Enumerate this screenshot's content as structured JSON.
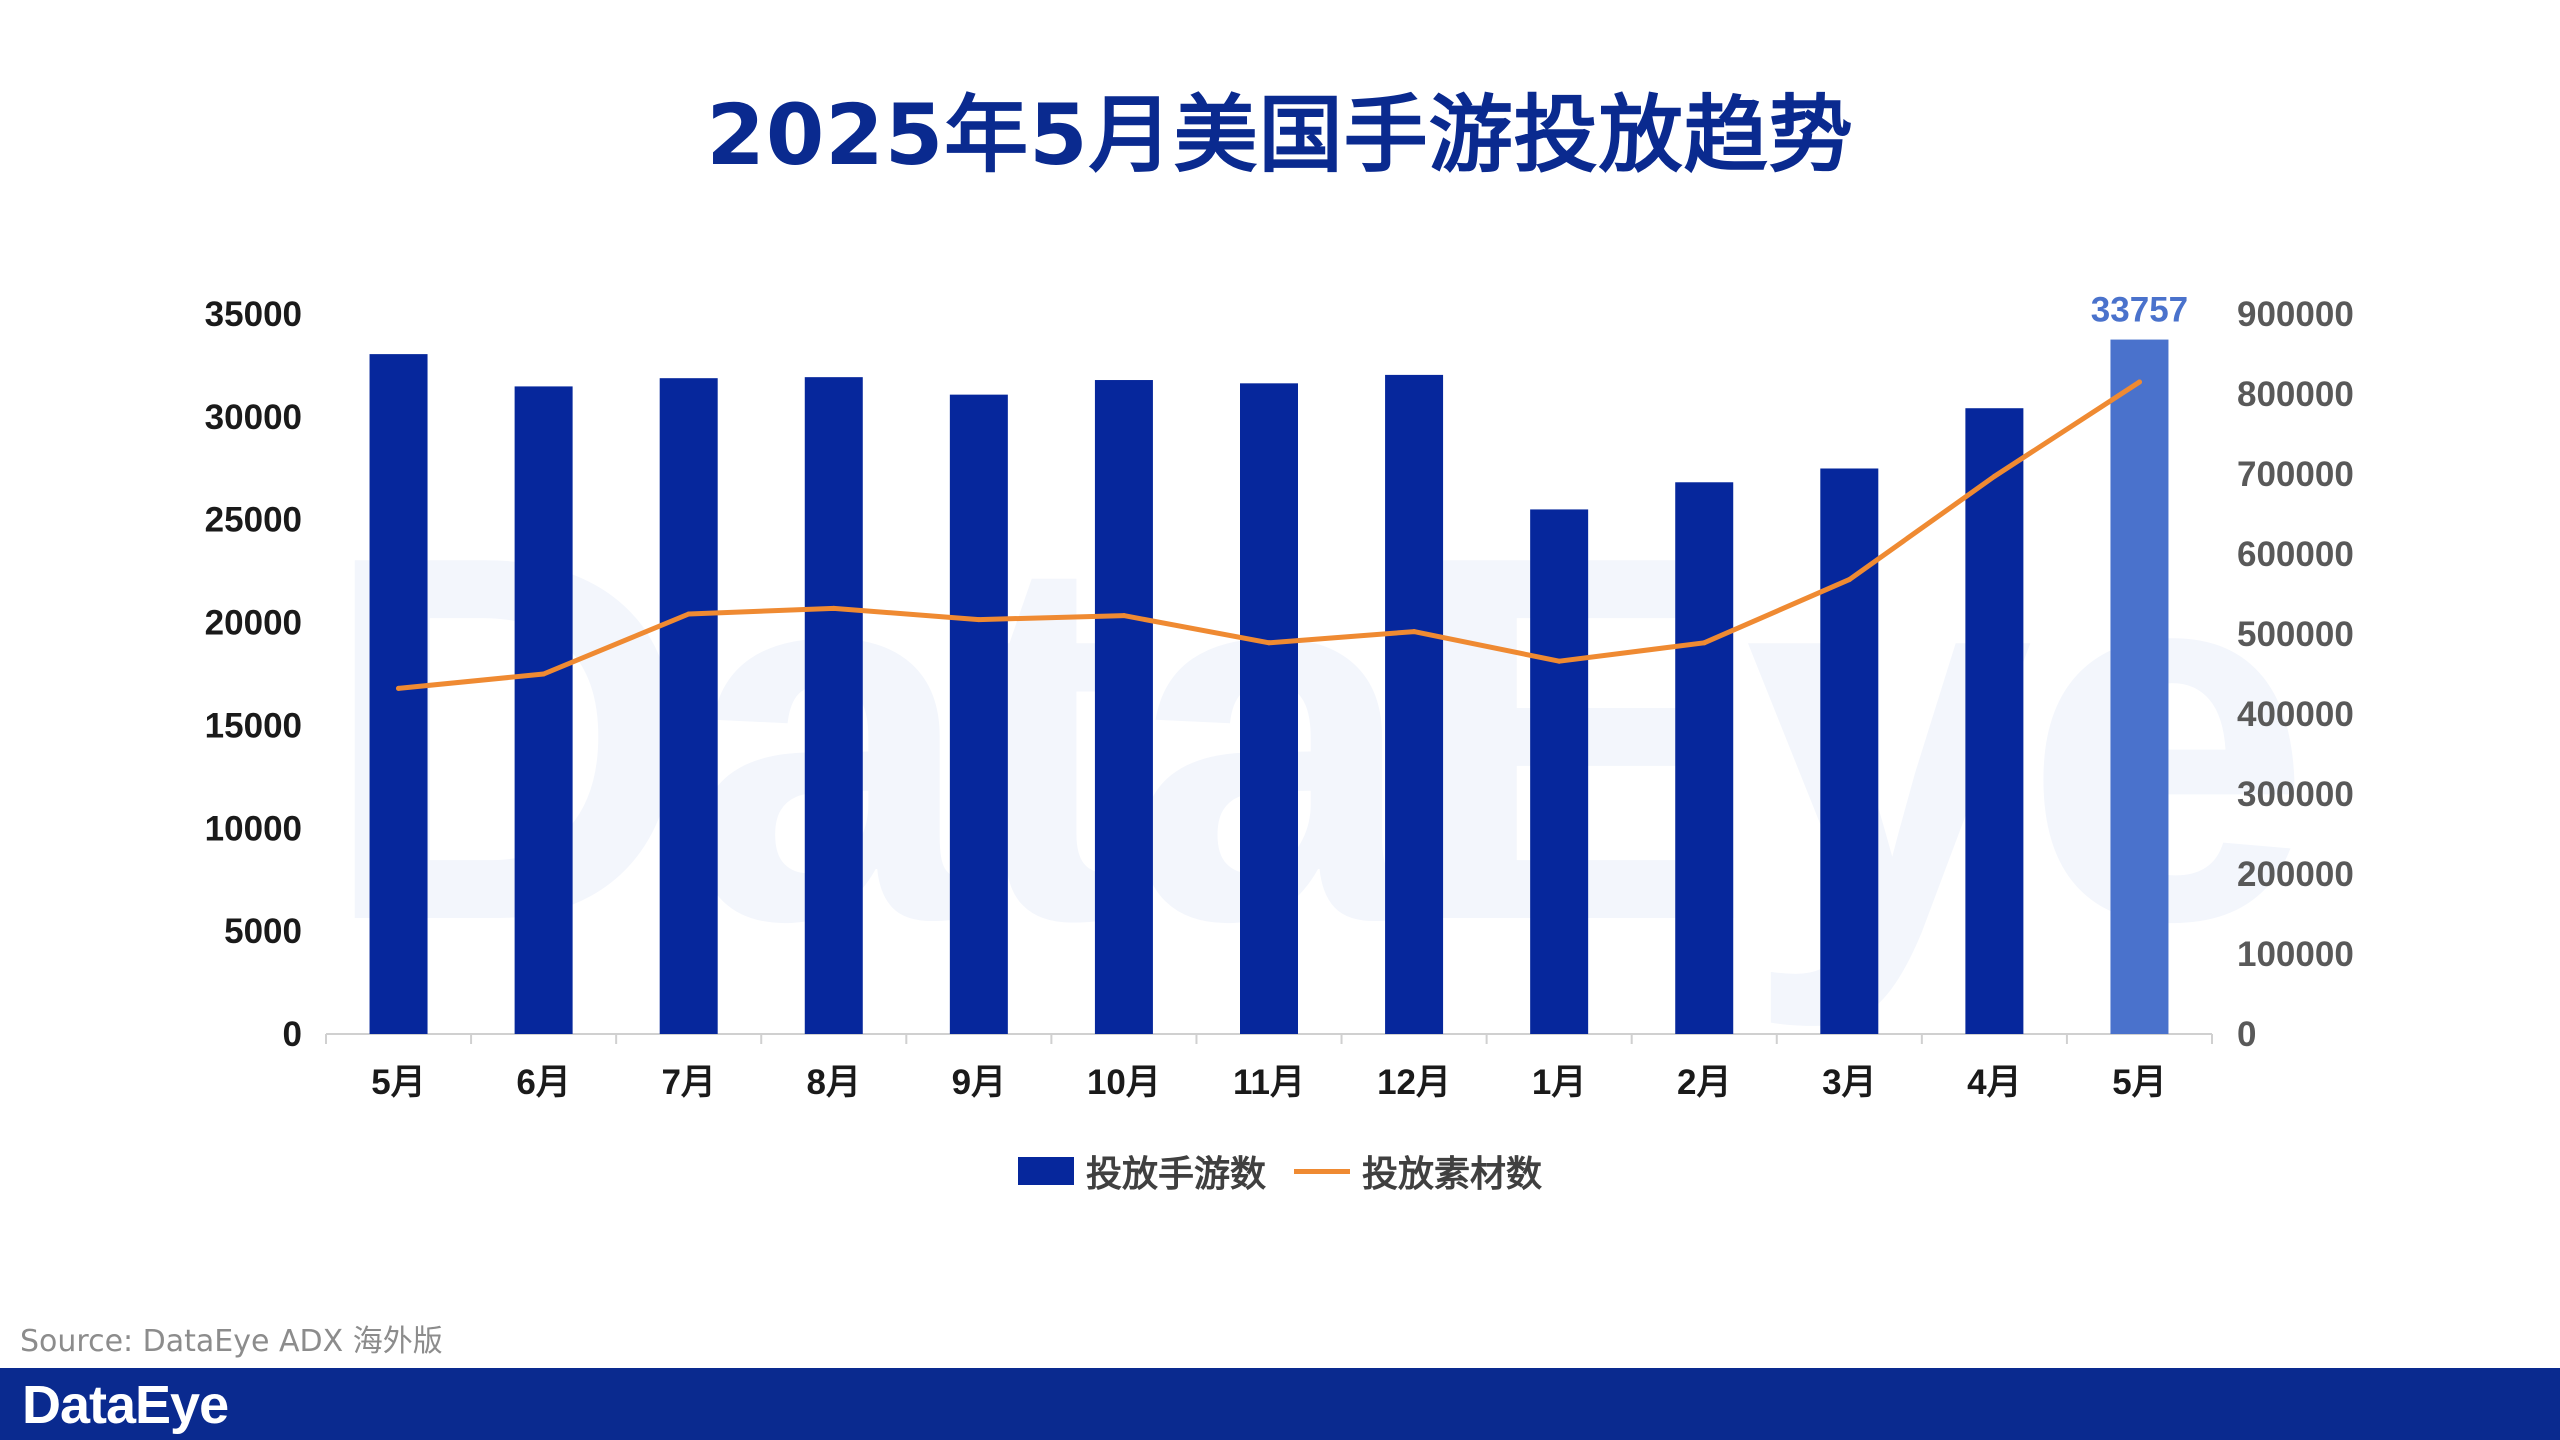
{
  "title": "2025年5月美国手游投放趋势",
  "watermark": "DataEye",
  "source": "Source: DataEye ADX 海外版",
  "footer_logo": "DataEye",
  "colors": {
    "bar": "#06279c",
    "bar_highlight": "#4a72cc",
    "line": "#ef8a32",
    "title": "#0a2a8f",
    "footer": "#0a2a8f"
  },
  "chart_data": {
    "type": "bar",
    "title": "2025年5月美国手游投放趋势",
    "categories": [
      "5月",
      "6月",
      "7月",
      "8月",
      "9月",
      "10月",
      "11月",
      "12月",
      "1月",
      "2月",
      "3月",
      "4月",
      "5月"
    ],
    "series": [
      {
        "name": "投放手游数",
        "type": "bar",
        "axis": "left",
        "values": [
          33050,
          31480,
          31880,
          31930,
          31080,
          31790,
          31630,
          32040,
          25500,
          26820,
          27490,
          30420,
          33757
        ]
      },
      {
        "name": "投放素材数",
        "type": "line",
        "axis": "right",
        "values": [
          432000,
          450000,
          525000,
          532000,
          518000,
          523000,
          489000,
          503000,
          466000,
          489000,
          568000,
          697000,
          815000
        ]
      }
    ],
    "highlight_index": 12,
    "annotations": [
      {
        "index": 12,
        "label": "33757"
      }
    ],
    "y_left": {
      "range": [
        0,
        35000
      ],
      "ticks": [
        "35000",
        "30000",
        "25000",
        "20000",
        "15000",
        "10000",
        "5000",
        "0"
      ]
    },
    "y_right": {
      "range": [
        0,
        900000
      ],
      "ticks": [
        "900000",
        "800000",
        "700000",
        "600000",
        "500000",
        "400000",
        "300000",
        "200000",
        "100000",
        "0"
      ]
    },
    "grid": false,
    "legend_position": "bottom"
  }
}
